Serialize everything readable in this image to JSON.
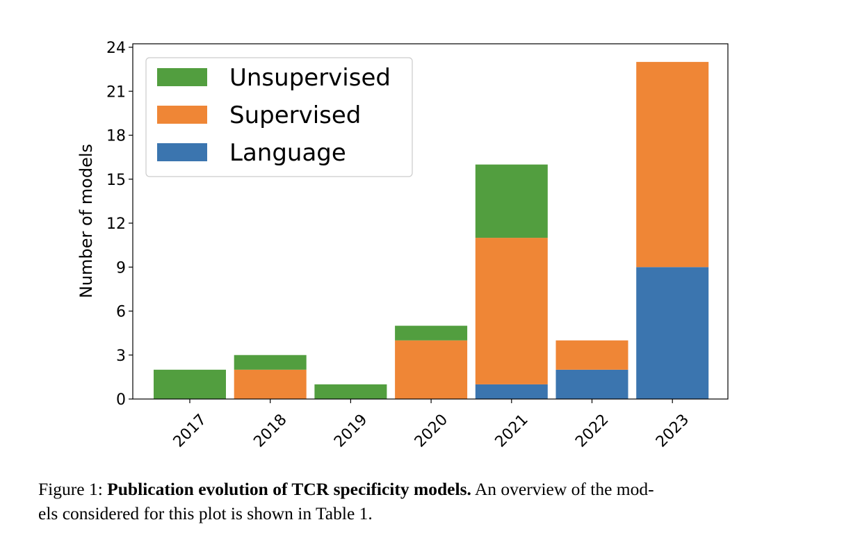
{
  "chart_data": {
    "type": "bar",
    "stacked": true,
    "categories": [
      "2017",
      "2018",
      "2019",
      "2020",
      "2021",
      "2022",
      "2023"
    ],
    "series": [
      {
        "name": "Language",
        "color": "#3b75af",
        "values": [
          0,
          0,
          0,
          0,
          1,
          2,
          9
        ]
      },
      {
        "name": "Supervised",
        "color": "#ef8636",
        "values": [
          0,
          2,
          0,
          4,
          10,
          2,
          14
        ]
      },
      {
        "name": "Unsupervised",
        "color": "#529e3f",
        "values": [
          2,
          1,
          1,
          1,
          5,
          0,
          0
        ]
      }
    ],
    "legend_order": [
      "Unsupervised",
      "Supervised",
      "Language"
    ],
    "legend_placement": "top-left",
    "xlabel": "",
    "ylabel": "Number of models",
    "ylim": [
      0,
      24
    ],
    "yticks": [
      0,
      3,
      6,
      9,
      12,
      15,
      18,
      21,
      24
    ],
    "grid": false
  },
  "caption": {
    "label": "Figure 1: ",
    "bold": "Publication evolution of TCR specificity models.",
    "line1_rest": " An overview of the mod-",
    "line2": "els considered for this plot is shown in Table 1."
  }
}
